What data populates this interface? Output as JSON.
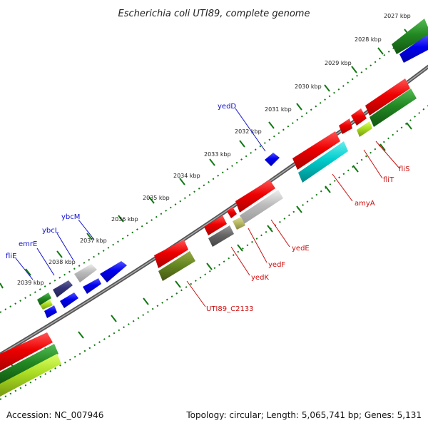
{
  "title": "Escherichia coli UTI89, complete genome",
  "footer": {
    "accession": "Accession: NC_007946",
    "summary": "Topology: circular; Length: 5,065,741 bp; Genes: 5,131"
  },
  "ticks": [
    "2027 kbp",
    "2028 kbp",
    "2029 kbp",
    "2030 kbp",
    "2031 kbp",
    "2032 kbp",
    "2033 kbp",
    "2034 kbp",
    "2035 kbp",
    "2036 kbp",
    "2037 kbp",
    "2038 kbp",
    "2039 kbp"
  ],
  "labels_forward": [
    "yedD",
    "ybcM",
    "ybcL",
    "emrE",
    "fliE"
  ],
  "labels_reverse": [
    "fliS",
    "fliT",
    "amyA",
    "yedE",
    "yedF",
    "yedK",
    "UTI89_C2133"
  ],
  "colors": {
    "red": "#ee0000",
    "green": "#228822",
    "blue": "#0000ee",
    "cyan": "#00cccc",
    "olive": "#668822",
    "gray": "#777777",
    "silver": "#bbbbbb",
    "navy": "#333377",
    "backbone": "#777777",
    "tick": "#117711",
    "lime": "#aadd22"
  }
}
